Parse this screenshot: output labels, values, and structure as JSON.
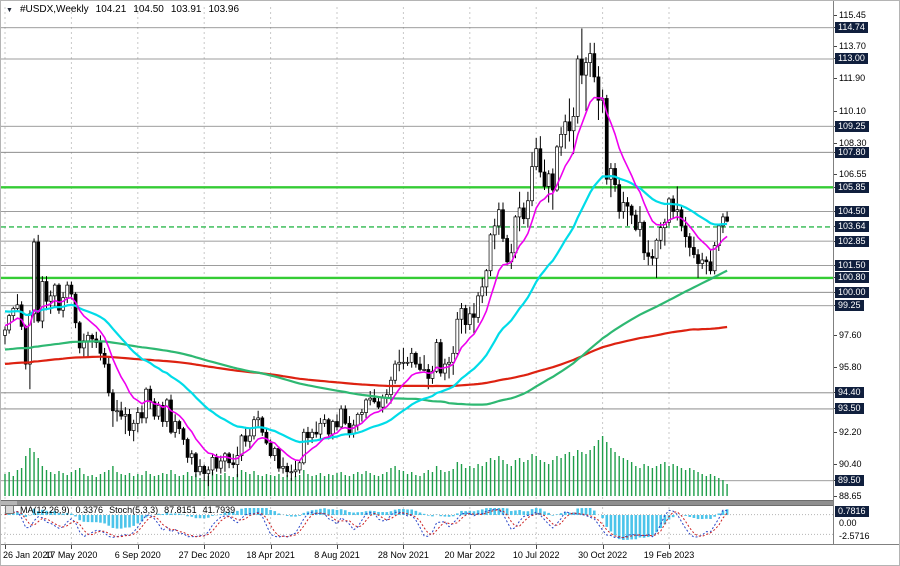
{
  "quote": {
    "symbol": "#USDX,Weekly",
    "open": "104.21",
    "high": "104.50",
    "low": "103.91",
    "close": "103.96"
  },
  "indicator_panel": {
    "name": "MA(12,26,9)",
    "value": "0.3376",
    "stoch_name": "Stoch(5,3,3)",
    "stoch_main": "87.8151",
    "stoch_signal": "41.7939",
    "axis_labels": [
      {
        "text": "0.7816",
        "highlighted": true
      },
      {
        "text": "0.00",
        "highlighted": false
      },
      {
        "text": "-2.5716",
        "highlighted": false
      }
    ]
  },
  "colors": {
    "grid": "#c9c9c9",
    "level_gray": "#7d7d7d",
    "level_green": "#35cc35",
    "level_green_dashed": "#2db84d",
    "bull": "#ffffff",
    "bear": "#000000",
    "outline": "#000000",
    "volume": "#1f9e4a",
    "ma_fast": "#ee00ee",
    "ma_medium": "#00dce8",
    "ma_slow": "#2eb872",
    "ma_slowest": "#dd2211",
    "osma": "#4cc4ea",
    "stoch_main": "#2a46c8",
    "stoch_signal": "#cc2222",
    "axis_highlight_bg": "#101f3d"
  },
  "chart_data": {
    "type": "candlestick",
    "title": "#USDX Weekly",
    "timeframe": "Weekly",
    "price_range": [
      88.65,
      115.45
    ],
    "ticks_every_n_candles": 16,
    "x_tick_labels": [
      "26 Jan 2020",
      "17 May 2020",
      "6 Sep 2020",
      "27 Dec 2020",
      "18 Apr 2021",
      "8 Aug 2021",
      "28 Nov 2021",
      "20 Mar 2022",
      "10 Jul 2022",
      "30 Oct 2022",
      "19 Feb 2023"
    ],
    "y_axis_labels": [
      {
        "text": "115.45",
        "highlighted": false
      },
      {
        "text": "114.74",
        "highlighted": true
      },
      {
        "text": "113.70",
        "highlighted": false
      },
      {
        "text": "113.00",
        "highlighted": true
      },
      {
        "text": "111.90",
        "highlighted": false
      },
      {
        "text": "110.10",
        "highlighted": false
      },
      {
        "text": "109.25",
        "highlighted": true
      },
      {
        "text": "108.30",
        "highlighted": false
      },
      {
        "text": "107.80",
        "highlighted": true
      },
      {
        "text": "106.55",
        "highlighted": false
      },
      {
        "text": "105.85",
        "highlighted": true
      },
      {
        "text": "104.50",
        "highlighted": true
      },
      {
        "text": "103.64",
        "highlighted": true
      },
      {
        "text": "102.85",
        "highlighted": true
      },
      {
        "text": "101.50",
        "highlighted": true
      },
      {
        "text": "100.80",
        "highlighted": true
      },
      {
        "text": "100.00",
        "highlighted": true
      },
      {
        "text": "99.25",
        "highlighted": true
      },
      {
        "text": "97.60",
        "highlighted": false
      },
      {
        "text": "95.80",
        "highlighted": false
      },
      {
        "text": "94.40",
        "highlighted": true
      },
      {
        "text": "93.50",
        "highlighted": true
      },
      {
        "text": "92.20",
        "highlighted": false
      },
      {
        "text": "90.40",
        "highlighted": false
      },
      {
        "text": "89.50",
        "highlighted": true
      },
      {
        "text": "88.65",
        "highlighted": false
      }
    ],
    "levels": {
      "green_solid": [
        105.85,
        100.8
      ],
      "green_dashed": [
        103.64
      ],
      "gray": [
        114.74,
        113.0,
        109.25,
        107.8,
        104.5,
        102.85,
        101.5,
        100.0,
        99.25,
        94.4,
        93.5,
        89.5
      ]
    },
    "moving_averages": [
      {
        "name": "fast-ema",
        "color_key": "ma_fast"
      },
      {
        "name": "medium-ema",
        "color_key": "ma_medium"
      },
      {
        "name": "slow-sma",
        "color_key": "ma_slow"
      },
      {
        "name": "slowest-sma",
        "color_key": "ma_slowest"
      }
    ],
    "candles": [
      [
        97.6,
        98.1,
        97.1,
        97.9
      ],
      [
        97.9,
        98.8,
        97.7,
        98.7
      ],
      [
        98.7,
        99.2,
        98.4,
        99.1
      ],
      [
        99.1,
        99.9,
        98.9,
        99.3
      ],
      [
        99.3,
        99.5,
        97.9,
        98.1
      ],
      [
        98.1,
        98.2,
        95.7,
        96.0
      ],
      [
        96.0,
        99.0,
        94.6,
        98.8
      ],
      [
        98.8,
        103.0,
        98.3,
        102.8
      ],
      [
        102.8,
        103.2,
        98.3,
        98.4
      ],
      [
        98.4,
        100.9,
        98.0,
        100.6
      ],
      [
        100.6,
        100.9,
        99.0,
        99.5
      ],
      [
        99.5,
        100.1,
        98.8,
        99.8
      ],
      [
        99.8,
        100.5,
        99.2,
        100.4
      ],
      [
        100.4,
        100.5,
        98.8,
        99.0
      ],
      [
        99.0,
        100.0,
        98.6,
        99.7
      ],
      [
        99.7,
        100.6,
        99.4,
        100.4
      ],
      [
        100.4,
        100.6,
        99.6,
        99.9
      ],
      [
        99.9,
        100.0,
        98.0,
        98.3
      ],
      [
        98.3,
        98.4,
        96.6,
        96.9
      ],
      [
        96.9,
        97.7,
        96.4,
        97.3
      ],
      [
        97.3,
        97.8,
        96.4,
        97.6
      ],
      [
        97.6,
        97.7,
        96.9,
        97.4
      ],
      [
        97.4,
        97.8,
        96.9,
        97.2
      ],
      [
        97.2,
        97.6,
        96.2,
        96.6
      ],
      [
        96.6,
        96.9,
        95.8,
        96.0
      ],
      [
        96.0,
        96.4,
        94.2,
        94.4
      ],
      [
        94.4,
        94.6,
        92.5,
        93.4
      ],
      [
        93.4,
        94.0,
        92.8,
        93.4
      ],
      [
        93.4,
        93.9,
        92.9,
        93.1
      ],
      [
        93.1,
        93.6,
        92.1,
        93.2
      ],
      [
        93.2,
        93.5,
        92.0,
        92.3
      ],
      [
        92.3,
        92.9,
        91.7,
        92.7
      ],
      [
        92.7,
        93.6,
        92.2,
        93.3
      ],
      [
        93.3,
        93.7,
        92.7,
        93.0
      ],
      [
        93.0,
        94.7,
        92.7,
        94.6
      ],
      [
        94.6,
        94.8,
        93.5,
        93.9
      ],
      [
        93.9,
        94.1,
        92.9,
        93.1
      ],
      [
        93.1,
        93.9,
        92.9,
        93.7
      ],
      [
        93.7,
        93.9,
        92.5,
        92.8
      ],
      [
        92.8,
        94.1,
        92.5,
        94.0
      ],
      [
        94.0,
        94.3,
        92.1,
        92.2
      ],
      [
        92.2,
        93.2,
        91.9,
        92.8
      ],
      [
        92.8,
        92.9,
        92.1,
        92.4
      ],
      [
        92.4,
        92.5,
        91.5,
        91.8
      ],
      [
        91.8,
        91.9,
        90.5,
        90.8
      ],
      [
        90.8,
        91.2,
        90.4,
        91.0
      ],
      [
        91.0,
        91.1,
        89.7,
        90.0
      ],
      [
        90.0,
        90.7,
        89.8,
        90.3
      ],
      [
        90.3,
        90.4,
        89.5,
        89.9
      ],
      [
        89.9,
        90.3,
        89.2,
        90.1
      ],
      [
        90.1,
        91.0,
        89.8,
        90.8
      ],
      [
        90.8,
        91.0,
        90.0,
        90.2
      ],
      [
        90.2,
        90.9,
        89.9,
        90.6
      ],
      [
        90.6,
        91.1,
        90.0,
        91.0
      ],
      [
        91.0,
        91.1,
        90.2,
        90.5
      ],
      [
        90.5,
        91.0,
        90.2,
        90.4
      ],
      [
        90.4,
        91.4,
        89.7,
        90.9
      ],
      [
        90.9,
        92.1,
        90.6,
        92.0
      ],
      [
        92.0,
        92.5,
        91.4,
        91.7
      ],
      [
        91.7,
        92.4,
        91.3,
        92.0
      ],
      [
        92.0,
        93.1,
        91.8,
        92.9
      ],
      [
        92.9,
        93.4,
        92.5,
        93.0
      ],
      [
        93.0,
        93.1,
        92.0,
        92.2
      ],
      [
        92.2,
        92.4,
        91.5,
        91.6
      ],
      [
        91.6,
        91.8,
        90.8,
        90.9
      ],
      [
        90.9,
        91.4,
        90.6,
        91.3
      ],
      [
        91.3,
        91.4,
        90.0,
        90.2
      ],
      [
        90.2,
        90.8,
        89.9,
        90.3
      ],
      [
        90.3,
        90.5,
        89.7,
        90.0
      ],
      [
        90.0,
        90.4,
        89.5,
        90.0
      ],
      [
        90.0,
        90.6,
        89.7,
        90.1
      ],
      [
        90.1,
        90.6,
        89.9,
        90.5
      ],
      [
        90.5,
        92.4,
        90.4,
        92.2
      ],
      [
        92.2,
        92.5,
        91.5,
        91.9
      ],
      [
        91.9,
        92.4,
        91.6,
        92.2
      ],
      [
        92.2,
        92.8,
        91.9,
        92.1
      ],
      [
        92.1,
        93.0,
        91.8,
        92.7
      ],
      [
        92.7,
        93.2,
        92.5,
        92.9
      ],
      [
        92.9,
        93.0,
        91.8,
        92.1
      ],
      [
        92.1,
        92.9,
        91.8,
        92.8
      ],
      [
        92.8,
        93.2,
        92.3,
        92.5
      ],
      [
        92.5,
        93.7,
        92.4,
        93.5
      ],
      [
        93.5,
        93.7,
        92.6,
        92.7
      ],
      [
        92.7,
        93.1,
        91.9,
        92.1
      ],
      [
        92.1,
        92.9,
        91.9,
        92.6
      ],
      [
        92.6,
        93.3,
        92.3,
        93.2
      ],
      [
        93.2,
        93.5,
        92.8,
        93.3
      ],
      [
        93.3,
        94.1,
        93.0,
        94.0
      ],
      [
        94.0,
        94.5,
        93.7,
        94.1
      ],
      [
        94.1,
        94.6,
        93.8,
        93.9
      ],
      [
        93.9,
        94.2,
        93.5,
        93.6
      ],
      [
        93.6,
        94.3,
        93.3,
        94.1
      ],
      [
        94.1,
        94.6,
        93.8,
        94.3
      ],
      [
        94.3,
        95.3,
        93.8,
        95.1
      ],
      [
        95.1,
        96.2,
        94.9,
        96.0
      ],
      [
        96.0,
        96.8,
        95.6,
        96.1
      ],
      [
        96.1,
        96.9,
        95.7,
        96.1
      ],
      [
        96.1,
        96.4,
        95.9,
        96.1
      ],
      [
        96.1,
        96.9,
        95.8,
        96.6
      ],
      [
        96.6,
        96.7,
        95.8,
        96.0
      ],
      [
        96.0,
        96.4,
        95.6,
        95.7
      ],
      [
        95.7,
        96.5,
        95.6,
        95.7
      ],
      [
        95.7,
        96.0,
        94.6,
        95.2
      ],
      [
        95.2,
        95.9,
        94.9,
        95.6
      ],
      [
        95.6,
        97.4,
        95.5,
        97.2
      ],
      [
        97.2,
        97.4,
        95.3,
        95.5
      ],
      [
        95.5,
        96.3,
        95.1,
        96.0
      ],
      [
        96.0,
        96.4,
        95.2,
        96.1
      ],
      [
        96.1,
        97.0,
        95.4,
        96.6
      ],
      [
        96.6,
        98.9,
        96.5,
        98.5
      ],
      [
        98.5,
        99.4,
        97.7,
        99.1
      ],
      [
        99.1,
        99.3,
        97.7,
        98.2
      ],
      [
        98.2,
        99.2,
        97.9,
        98.8
      ],
      [
        98.8,
        99.4,
        97.7,
        98.6
      ],
      [
        98.6,
        100.0,
        98.3,
        99.8
      ],
      [
        99.8,
        100.8,
        99.4,
        100.3
      ],
      [
        100.3,
        101.3,
        99.8,
        101.2
      ],
      [
        101.2,
        103.3,
        100.9,
        103.2
      ],
      [
        103.2,
        104.1,
        102.4,
        103.7
      ],
      [
        103.7,
        105.0,
        103.2,
        104.6
      ],
      [
        104.6,
        105.0,
        102.8,
        103.0
      ],
      [
        103.0,
        103.2,
        101.5,
        101.7
      ],
      [
        101.7,
        102.7,
        101.3,
        102.2
      ],
      [
        102.2,
        104.3,
        101.9,
        104.2
      ],
      [
        104.2,
        105.6,
        103.4,
        104.7
      ],
      [
        104.7,
        105.0,
        103.8,
        104.1
      ],
      [
        104.1,
        105.6,
        103.6,
        105.1
      ],
      [
        105.1,
        107.8,
        104.8,
        107.0
      ],
      [
        107.0,
        108.6,
        106.8,
        108.0
      ],
      [
        108.0,
        108.7,
        106.4,
        106.7
      ],
      [
        106.7,
        107.4,
        105.7,
        105.9
      ],
      [
        105.9,
        106.8,
        105.0,
        106.6
      ],
      [
        106.6,
        106.9,
        104.6,
        105.7
      ],
      [
        105.7,
        108.2,
        105.6,
        108.1
      ],
      [
        108.1,
        109.2,
        107.6,
        108.8
      ],
      [
        108.8,
        109.9,
        108.0,
        109.5
      ],
      [
        109.5,
        110.8,
        108.4,
        109.0
      ],
      [
        109.0,
        110.3,
        107.7,
        109.8
      ],
      [
        109.8,
        113.2,
        109.4,
        113.0
      ],
      [
        113.0,
        114.7,
        111.6,
        112.1
      ],
      [
        112.1,
        113.1,
        110.1,
        112.8
      ],
      [
        112.8,
        113.9,
        112.0,
        113.3
      ],
      [
        113.3,
        113.9,
        111.7,
        112.0
      ],
      [
        112.0,
        112.6,
        109.6,
        110.7
      ],
      [
        110.7,
        111.3,
        110.0,
        110.8
      ],
      [
        110.8,
        111.0,
        106.0,
        106.3
      ],
      [
        106.3,
        107.2,
        105.3,
        106.9
      ],
      [
        106.9,
        107.2,
        105.6,
        106.0
      ],
      [
        106.0,
        106.4,
        104.1,
        104.5
      ],
      [
        104.5,
        105.6,
        104.1,
        105.0
      ],
      [
        105.0,
        105.3,
        103.7,
        104.8
      ],
      [
        104.8,
        104.9,
        103.8,
        104.3
      ],
      [
        104.3,
        104.6,
        103.4,
        103.5
      ],
      [
        103.5,
        104.8,
        103.1,
        103.9
      ],
      [
        103.9,
        104.0,
        101.8,
        102.2
      ],
      [
        102.2,
        102.9,
        101.5,
        102.0
      ],
      [
        102.0,
        102.4,
        101.5,
        101.9
      ],
      [
        101.9,
        103.0,
        100.8,
        102.9
      ],
      [
        102.9,
        103.9,
        102.4,
        103.6
      ],
      [
        103.6,
        104.1,
        102.6,
        103.9
      ],
      [
        103.9,
        105.3,
        103.7,
        105.2
      ],
      [
        105.2,
        105.4,
        104.1,
        104.5
      ],
      [
        104.5,
        105.9,
        104.0,
        104.6
      ],
      [
        104.6,
        104.8,
        103.4,
        103.7
      ],
      [
        103.7,
        104.2,
        102.5,
        103.1
      ],
      [
        103.1,
        103.3,
        102.0,
        102.5
      ],
      [
        102.5,
        103.1,
        101.9,
        102.1
      ],
      [
        102.1,
        102.4,
        100.8,
        101.6
      ],
      [
        101.6,
        102.2,
        101.3,
        101.8
      ],
      [
        101.8,
        102.0,
        101.0,
        101.7
      ],
      [
        101.7,
        102.4,
        101.0,
        101.2
      ],
      [
        101.2,
        102.8,
        101.0,
        102.6
      ],
      [
        102.6,
        103.8,
        102.3,
        103.7
      ],
      [
        103.7,
        104.4,
        103.3,
        104.2
      ],
      [
        104.2,
        104.5,
        103.9,
        103.96
      ]
    ],
    "volumes": [
      22,
      24,
      20,
      26,
      28,
      40,
      48,
      44,
      38,
      30,
      26,
      24,
      22,
      25,
      23,
      21,
      24,
      26,
      28,
      22,
      20,
      21,
      19,
      22,
      24,
      26,
      30,
      24,
      22,
      21,
      23,
      20,
      22,
      21,
      25,
      22,
      20,
      21,
      23,
      22,
      26,
      22,
      20,
      21,
      24,
      20,
      22,
      18,
      16,
      20,
      24,
      22,
      21,
      23,
      20,
      19,
      22,
      26,
      24,
      22,
      25,
      21,
      20,
      22,
      21,
      20,
      22,
      19,
      21,
      18,
      20,
      21,
      26,
      22,
      20,
      21,
      23,
      20,
      22,
      21,
      23,
      24,
      21,
      20,
      22,
      24,
      22,
      25,
      23,
      21,
      20,
      22,
      24,
      28,
      30,
      26,
      25,
      22,
      24,
      21,
      20,
      23,
      26,
      24,
      30,
      26,
      24,
      25,
      27,
      34,
      32,
      28,
      30,
      28,
      32,
      30,
      34,
      38,
      36,
      40,
      36,
      32,
      30,
      36,
      38,
      34,
      36,
      42,
      40,
      36,
      34,
      32,
      36,
      40,
      38,
      42,
      44,
      40,
      46,
      44,
      42,
      46,
      50,
      56,
      60,
      54,
      48,
      44,
      40,
      38,
      36,
      34,
      30,
      28,
      32,
      30,
      28,
      30,
      32,
      34,
      30,
      32,
      30,
      28,
      26,
      28,
      26,
      24,
      22,
      20,
      22,
      20,
      18,
      16,
      12
    ]
  }
}
